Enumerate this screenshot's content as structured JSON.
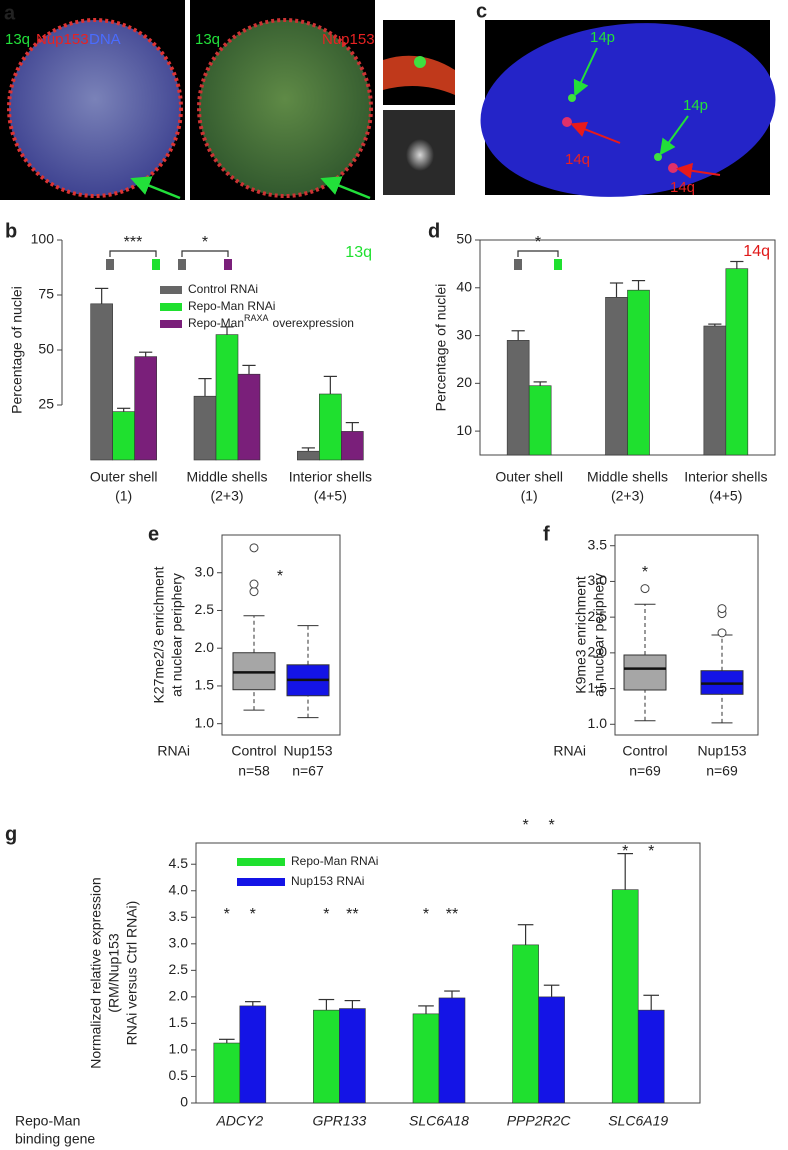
{
  "image_panels": [
    {
      "letter": "a",
      "labels": [
        "13q",
        "Nup153",
        "DNA",
        "13q",
        "Nup153"
      ]
    },
    {
      "letter": "c",
      "labels": [
        "14p",
        "14p",
        "14q",
        "14q"
      ]
    }
  ],
  "chart_data": [
    {
      "panel": "b",
      "type": "bar",
      "ylabel": [
        "Percentage of nuclei"
      ],
      "categories": [
        "Outer shell",
        "Middle shells",
        "Interior shells"
      ],
      "category_sublabels": [
        "(1)",
        "(2+3)",
        "(4+5)"
      ],
      "series": [
        {
          "name": "Control RNAi",
          "color": "#666666",
          "values": [
            71,
            29,
            4
          ],
          "errors": [
            7,
            8,
            1.5
          ]
        },
        {
          "name": "Repo-Man RNAi",
          "color": "#1fe02f",
          "values": [
            22,
            57,
            30
          ],
          "errors": [
            1.5,
            3.5,
            8
          ]
        },
        {
          "name": "Repo-Man",
          "name_superscript": "RAXA",
          "name_tail": "overexpression",
          "color": "#7a1f7a",
          "values": [
            47,
            39,
            13
          ],
          "errors": [
            2,
            4,
            4
          ]
        }
      ],
      "ylim": [
        0,
        100
      ],
      "yticks": [
        25,
        50,
        75,
        100
      ],
      "legend": "top",
      "label": "13q",
      "label_color": "#1fe02f",
      "annotations": [
        "***",
        "*"
      ]
    },
    {
      "panel": "d",
      "type": "bar",
      "ylabel": [
        "Percentage of nuclei"
      ],
      "categories": [
        "Outer shell",
        "Middle shells",
        "Interior shells"
      ],
      "category_sublabels": [
        "(1)",
        "(2+3)",
        "(4+5)"
      ],
      "series": [
        {
          "color": "#666666",
          "values": [
            29,
            38,
            32
          ],
          "errors": [
            2,
            3,
            0.4
          ]
        },
        {
          "color": "#1fe02f",
          "values": [
            19.5,
            39.5,
            44
          ],
          "errors": [
            0.8,
            2,
            1.5
          ]
        }
      ],
      "ylim": [
        5,
        50
      ],
      "yticks": [
        10,
        20,
        30,
        40,
        50
      ],
      "label": "14q",
      "label_color": "#e01818",
      "annotations": [
        "*"
      ]
    },
    {
      "panel": "e",
      "type": "box",
      "ylabel": [
        "K27me2/3 enrichment",
        "at nuclear periphery"
      ],
      "xlabel": "RNAi",
      "categories": [
        "Control",
        "Nup153"
      ],
      "n_labels": [
        "n=58",
        "n=67"
      ],
      "boxes": [
        {
          "whislo": 1.18,
          "q1": 1.45,
          "med": 1.68,
          "q3": 1.94,
          "whishi": 2.43,
          "fliers": [
            2.75,
            2.85,
            3.33
          ],
          "color": "#a6a6a6"
        },
        {
          "whislo": 1.08,
          "q1": 1.37,
          "med": 1.58,
          "q3": 1.78,
          "whishi": 2.3,
          "fliers": [],
          "color": "#1414e6"
        }
      ],
      "ylim": [
        0.85,
        3.5
      ],
      "yticks": [
        {
          "value": 1,
          "label": "1.0"
        },
        1.5,
        {
          "value": 2,
          "label": "2.0"
        },
        2.5,
        {
          "value": 3,
          "label": "3.0"
        }
      ],
      "annotations": [
        "*"
      ]
    },
    {
      "panel": "f",
      "type": "box",
      "ylabel": [
        "K9me3 enrichment",
        "at nuclear periphery"
      ],
      "xlabel": "RNAi",
      "categories": [
        "Control",
        "Nup153"
      ],
      "n_labels": [
        "n=69",
        "n=69"
      ],
      "boxes": [
        {
          "whislo": 1.05,
          "q1": 1.48,
          "med": 1.78,
          "q3": 1.97,
          "whishi": 2.68,
          "fliers": [
            2.9
          ],
          "color": "#a6a6a6"
        },
        {
          "whislo": 1.02,
          "q1": 1.42,
          "med": 1.57,
          "q3": 1.75,
          "whishi": 2.25,
          "fliers": [
            2.28,
            2.55,
            2.62
          ],
          "color": "#1414e6"
        }
      ],
      "ylim": [
        0.85,
        3.65
      ],
      "yticks": [
        {
          "value": 1,
          "label": "1.0"
        },
        1.5,
        {
          "value": 2,
          "label": "2.0"
        },
        2.5,
        {
          "value": 3,
          "label": "3.0"
        },
        3.5
      ],
      "annotations": [
        "*"
      ]
    },
    {
      "panel": "g",
      "type": "bar",
      "ylabel": [
        "Normalized relative expression",
        "(RM/Nup153",
        "RNAi versus Ctrl RNAi)"
      ],
      "xlabel": [
        "Repo-Man",
        "binding gene"
      ],
      "categories": [
        "ADCY2",
        "GPR133",
        "SLC6A18",
        "PPP2R2C",
        "SLC6A19"
      ],
      "series": [
        {
          "name": "Repo-Man RNAi",
          "color": "#1fe02f",
          "values": [
            1.13,
            1.75,
            1.68,
            2.98,
            4.02
          ],
          "errors": [
            0.07,
            0.2,
            0.15,
            0.38,
            0.68
          ],
          "significance": [
            "*",
            "*",
            "*",
            "*",
            "*"
          ]
        },
        {
          "name": "Nup153 RNAi",
          "color": "#1414e6",
          "values": [
            1.83,
            1.78,
            1.98,
            2.0,
            1.75
          ],
          "errors": [
            0.08,
            0.15,
            0.13,
            0.22,
            0.28
          ],
          "significance": [
            "*",
            "**",
            "**",
            "*",
            "*"
          ]
        }
      ],
      "ylim": [
        0,
        4.9
      ],
      "yticks": [
        0,
        0.5,
        {
          "value": 1,
          "label": "1.0"
        },
        1.5,
        {
          "value": 2,
          "label": "2.0"
        },
        2.5,
        {
          "value": 3,
          "label": "3.0"
        },
        3.5,
        {
          "value": 4,
          "label": "4.0"
        },
        4.5
      ],
      "legend": "top-left"
    }
  ]
}
